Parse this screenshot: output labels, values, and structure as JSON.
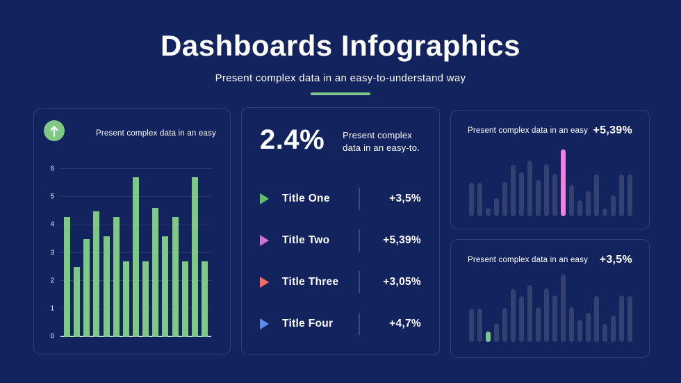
{
  "colors": {
    "background": "#12235e",
    "panel_border": "#2e4079",
    "accent_green": "#7ec983",
    "muted_bar_blue": "#334170",
    "highlight_pink": "#ee82de",
    "baseline": "#ccd5ea",
    "text": "#ffffff"
  },
  "header": {
    "title": "Dashboards Infographics",
    "subtitle": "Present complex data in an easy-to-understand way"
  },
  "panel_left": {
    "icon": "arrow-up-circle-icon",
    "label": "Present complex data in an easy"
  },
  "panel_middle": {
    "stat_value": "2.4%",
    "stat_caption": "Present complex data in an easy-to.",
    "rows": [
      {
        "icon": "triangle-right-icon",
        "title": "Title One",
        "value": "+3,5%",
        "color": "#5fc066"
      },
      {
        "icon": "triangle-right-icon",
        "title": "Title Two",
        "value": "+5,39%",
        "color": "#ce72d2"
      },
      {
        "icon": "triangle-right-icon",
        "title": "Title Three",
        "value": "+3,05%",
        "color": "#f56b5c"
      },
      {
        "icon": "triangle-right-icon",
        "title": "Title Four",
        "value": "+4,7%",
        "color": "#5c8bee"
      }
    ]
  },
  "panel_right_top": {
    "label": "Present complex data in an easy",
    "value": "+5,39%"
  },
  "panel_right_bottom": {
    "label": "Present complex data in an easy",
    "value": "+3,5%"
  },
  "chart_data": [
    {
      "id": "left-bars",
      "type": "bar",
      "title": "Present complex data in an easy",
      "values": [
        4.3,
        2.5,
        3.5,
        4.5,
        3.6,
        4.3,
        2.7,
        5.7,
        2.7,
        4.6,
        3.6,
        4.3,
        2.7,
        5.7,
        2.7
      ],
      "ylim": [
        0,
        6
      ],
      "yticks": [
        6,
        5,
        4,
        3,
        2,
        1,
        0
      ],
      "bar_color": "#7ec983",
      "grid": true,
      "legend": "none"
    },
    {
      "id": "right-top-bars",
      "type": "bar",
      "annotation": "+5,39%",
      "values": [
        48,
        48,
        12,
        26,
        49,
        74,
        63,
        80,
        52,
        75,
        61,
        96,
        45,
        23,
        36,
        60,
        11,
        30,
        60,
        60
      ],
      "ylim": [
        0,
        100
      ],
      "bar_color": "#334170",
      "highlight_index": 11,
      "highlight_color": "#ee82de",
      "grid": false
    },
    {
      "id": "right-bottom-bars",
      "type": "bar",
      "annotation": "+3,5%",
      "values": [
        48,
        48,
        15,
        27,
        49,
        76,
        66,
        82,
        50,
        77,
        67,
        97,
        50,
        32,
        42,
        66,
        26,
        38,
        67,
        66
      ],
      "ylim": [
        0,
        100
      ],
      "bar_color": "#334170",
      "highlight_index": 2,
      "highlight_color": "#7ec983",
      "grid": false
    },
    {
      "id": "middle-metrics",
      "type": "table",
      "columns": [
        "title",
        "value"
      ],
      "rows": [
        [
          "Title One",
          "+3,5%"
        ],
        [
          "Title Two",
          "+5,39%"
        ],
        [
          "Title Three",
          "+3,05%"
        ],
        [
          "Title Four",
          "+4,7%"
        ]
      ],
      "header_stat": {
        "value": "2.4%",
        "caption": "Present complex data in an easy-to."
      }
    }
  ]
}
